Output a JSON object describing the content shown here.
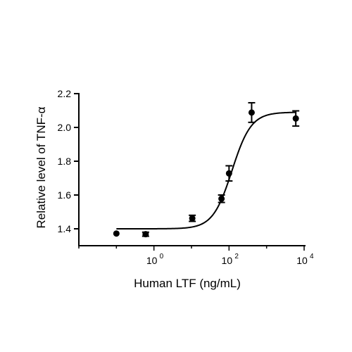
{
  "chart_data": {
    "type": "scatter",
    "title": "",
    "xlabel": "Human LTF (ng/mL)",
    "ylabel": "Relative level of TNF-α",
    "x_scale": "log10",
    "xlim": [
      0.01,
      10000
    ],
    "ylim": [
      1.3,
      2.2
    ],
    "x_ticks": [
      {
        "value": 1,
        "base": "10",
        "exp": "0"
      },
      {
        "value": 100,
        "base": "10",
        "exp": "2"
      },
      {
        "value": 10000,
        "base": "10",
        "exp": "4"
      }
    ],
    "y_ticks": [
      "1.4",
      "1.6",
      "1.8",
      "2.0",
      "2.2"
    ],
    "grid": false,
    "points": [
      {
        "x": 0.1,
        "y": 1.372,
        "err": 0.0
      },
      {
        "x": 0.6,
        "y": 1.368,
        "err": 0.012
      },
      {
        "x": 10.5,
        "y": 1.462,
        "err": 0.018
      },
      {
        "x": 63,
        "y": 1.578,
        "err": 0.022
      },
      {
        "x": 100,
        "y": 1.728,
        "err": 0.045
      },
      {
        "x": 400,
        "y": 2.088,
        "err": 0.058
      },
      {
        "x": 6000,
        "y": 2.053,
        "err": 0.045
      }
    ],
    "fit": {
      "model": "four-parameter logistic",
      "bottom": 1.4,
      "top": 2.09,
      "ec50": 120,
      "hill": 1.7
    }
  }
}
